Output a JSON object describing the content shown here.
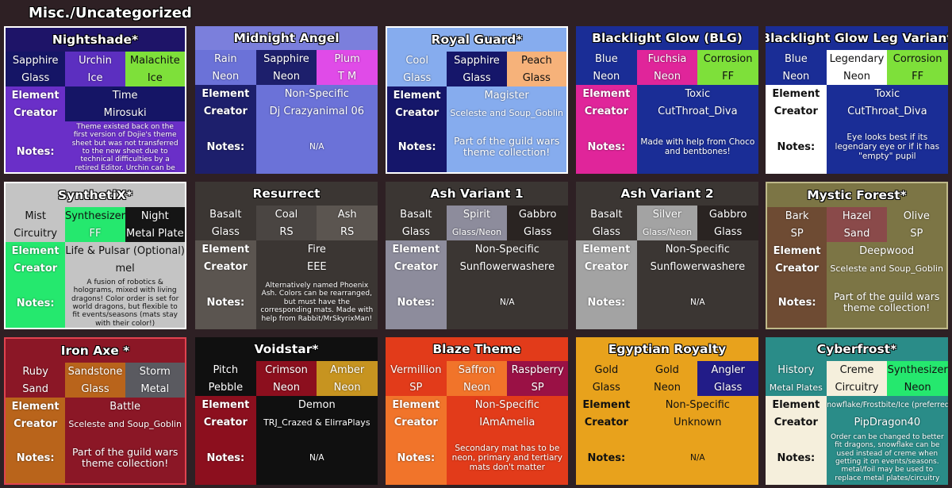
{
  "page_title": "Misc./Uncategorized",
  "labels": {
    "element": "Element",
    "creator": "Creator",
    "notes": "Notes:"
  },
  "themes": [
    {
      "name": "Nightshade*",
      "title_bg": "#1e1468",
      "border": "#ffffff",
      "row1": [
        {
          "t": "Sapphire",
          "bg": "#151566"
        },
        {
          "t": "Urchin",
          "bg": "#5c2fc0"
        },
        {
          "t": "Malachite",
          "bg": "#7ee03a",
          "dark": true
        }
      ],
      "row2": [
        {
          "t": "Glass",
          "bg": "#151566"
        },
        {
          "t": "Ice",
          "bg": "#5c2fc0"
        },
        {
          "t": "Ice",
          "bg": "#7ee03a",
          "dark": true
        }
      ],
      "label_bg": "#6a2fc8",
      "value_bg": "#151566",
      "element": "Time",
      "creator": "Mirosuki",
      "notes": "Theme existed back on the first version of Dojie's theme sheet but was not transferred to the new sheet due to technical difficulties by a retired Editor. Urchin can be replaced by midnight.",
      "notes_bg": "#6a2fc8",
      "notes_size": "s"
    },
    {
      "name": "Midnight Angel",
      "title_bg": "#7b7fdc",
      "row1": [
        {
          "t": "Rain",
          "bg": "#6b72d8"
        },
        {
          "t": "Sapphire",
          "bg": "#1d1f6c"
        },
        {
          "t": "Plum",
          "bg": "#e04be8"
        }
      ],
      "row2": [
        {
          "t": "Neon",
          "bg": "#6b72d8"
        },
        {
          "t": "Neon",
          "bg": "#1d1f6c"
        },
        {
          "t": "T M",
          "bg": "#e04be8"
        }
      ],
      "label_bg": "#1d1f6c",
      "value_bg": "#6b72d8",
      "element": "Non-Specific",
      "creator": "Dj Crazyanimal 06",
      "notes": "N/A",
      "notes_bg": "#6b72d8",
      "notes_size": "m"
    },
    {
      "name": "Royal Guard*",
      "title_bg": "#86acee",
      "border": "#ffffff",
      "row1": [
        {
          "t": "Cool",
          "bg": "#86acee"
        },
        {
          "t": "Sapphire",
          "bg": "#15166a"
        },
        {
          "t": "Peach",
          "bg": "#f6b27a",
          "dark": true
        }
      ],
      "row2": [
        {
          "t": "Glass",
          "bg": "#86acee"
        },
        {
          "t": "Glass",
          "bg": "#15166a"
        },
        {
          "t": "Glass",
          "bg": "#f6b27a",
          "dark": true
        }
      ],
      "label_bg": "#15166a",
      "value_bg": "#86acee",
      "element": "Magister",
      "creator": "Sceleste and Soup_Goblin",
      "notes": "Part of the guild wars theme collection!",
      "notes_bg": "#86acee",
      "notes_size": "l"
    },
    {
      "name": "Blacklight Glow (BLG)",
      "title_bg": "#1a2d96",
      "row1": [
        {
          "t": "Blue",
          "bg": "#1a2d96"
        },
        {
          "t": "Fuchsia",
          "bg": "#e0259a"
        },
        {
          "t": "Corrosion",
          "bg": "#7ee03a",
          "dark": true
        }
      ],
      "row2": [
        {
          "t": "Neon",
          "bg": "#1a2d96"
        },
        {
          "t": "Neon",
          "bg": "#e0259a"
        },
        {
          "t": "FF",
          "bg": "#7ee03a",
          "dark": true
        }
      ],
      "label_bg": "#e0259a",
      "value_bg": "#1a2d96",
      "element": "Toxic",
      "creator": "CutThroat_Diva",
      "notes": "Made with help from Choco and bentbones!",
      "notes_bg": "#1a2d96",
      "notes_size": "m"
    },
    {
      "name": "Blacklight Glow Leg Variant",
      "title_bg": "#1a2d96",
      "row1": [
        {
          "t": "Blue",
          "bg": "#1a2d96"
        },
        {
          "t": "Legendary",
          "bg": "#ffffff",
          "dark": true
        },
        {
          "t": "Corrosion",
          "bg": "#7ee03a",
          "dark": true
        }
      ],
      "row2": [
        {
          "t": "Neon",
          "bg": "#1a2d96"
        },
        {
          "t": "Neon",
          "bg": "#ffffff",
          "dark": true
        },
        {
          "t": "FF",
          "bg": "#7ee03a",
          "dark": true
        }
      ],
      "label_bg": "#ffffff",
      "label_dark": true,
      "value_bg": "#1a2d96",
      "element": "Toxic",
      "creator": "CutThroat_Diva",
      "notes": "Eye looks best if its legendary eye or if it has \"empty\" pupil",
      "notes_bg": "#1a2d96",
      "notes_size": "m"
    },
    {
      "name": "SynthetiX*",
      "title_bg": "#c4c4c4",
      "border": "#ffffff",
      "row1": [
        {
          "t": "Mist",
          "bg": "#c4c4c4",
          "dark": true
        },
        {
          "t": "Synthesizer",
          "bg": "#25e86e",
          "dark": true
        },
        {
          "t": "Night",
          "bg": "#151515"
        }
      ],
      "row2": [
        {
          "t": "Circuitry",
          "bg": "#c4c4c4",
          "dark": true
        },
        {
          "t": "FF",
          "bg": "#25e86e"
        },
        {
          "t": "Metal Plate",
          "bg": "#151515"
        }
      ],
      "label_bg": "#25e86e",
      "value_bg": "#c4c4c4",
      "value_dark": true,
      "element": "Life & Pulsar (Optional)",
      "creator": "mel",
      "notes": "A fusion of robotics & holograms, mixed with living dragons! Color order is set for world dragons, but flexible to fit events/seasons (mats stay with their color!)",
      "notes_bg": "#c4c4c4",
      "notes_dark": true,
      "notes_size": "s"
    },
    {
      "name": "Resurrect",
      "title_bg": "#3b3633",
      "row1": [
        {
          "t": "Basalt",
          "bg": "#3b3633"
        },
        {
          "t": "Coal",
          "bg": "#4a4542"
        },
        {
          "t": "Ash",
          "bg": "#5b5550"
        }
      ],
      "row2": [
        {
          "t": "Glass",
          "bg": "#3b3633"
        },
        {
          "t": "RS",
          "bg": "#4a4542"
        },
        {
          "t": "RS",
          "bg": "#5b5550"
        }
      ],
      "label_bg": "#5b5550",
      "value_bg": "#3b3633",
      "element": "Fire",
      "creator": "EEE",
      "notes": "Alternatively named Phoenix Ash. Colors can be rearranged, but must have the corresponding mats. Made with help from Rabbit/MrSkyrixMan!",
      "notes_bg": "#3b3633",
      "notes_size": "s"
    },
    {
      "name": "Ash Variant 1",
      "title_bg": "#3b3633",
      "row1": [
        {
          "t": "Basalt",
          "bg": "#3b3633"
        },
        {
          "t": "Spirit",
          "bg": "#8d8c9c"
        },
        {
          "t": "Gabbro",
          "bg": "#2a2422"
        }
      ],
      "row2": [
        {
          "t": "Glass",
          "bg": "#3b3633"
        },
        {
          "t": "Glass/Neon",
          "bg": "#8d8c9c",
          "sm": true
        },
        {
          "t": "Glass",
          "bg": "#2a2422"
        }
      ],
      "label_bg": "#8d8c9c",
      "value_bg": "#3b3633",
      "element": "Non-Specific",
      "creator": "Sunflowerwashere",
      "notes": "N/A",
      "notes_bg": "#3b3633",
      "notes_size": "m"
    },
    {
      "name": "Ash Variant 2",
      "title_bg": "#3b3633",
      "row1": [
        {
          "t": "Basalt",
          "bg": "#3b3633"
        },
        {
          "t": "Silver",
          "bg": "#a3a3a3"
        },
        {
          "t": "Gabbro",
          "bg": "#2a2422"
        }
      ],
      "row2": [
        {
          "t": "Glass",
          "bg": "#3b3633"
        },
        {
          "t": "Glass/Neon",
          "bg": "#a3a3a3",
          "sm": true
        },
        {
          "t": "Glass",
          "bg": "#2a2422"
        }
      ],
      "label_bg": "#a3a3a3",
      "value_bg": "#3b3633",
      "element": "Non-Specific",
      "creator": "Sunflowerwashere",
      "notes": "N/A",
      "notes_bg": "#3b3633",
      "notes_size": "m"
    },
    {
      "name": "Mystic Forest*",
      "title_bg": "#7c7545",
      "border": "#bfb98a",
      "row1": [
        {
          "t": "Bark",
          "bg": "#6e4b33"
        },
        {
          "t": "Hazel",
          "bg": "#8a4a4a"
        },
        {
          "t": "Olive",
          "bg": "#7c7545"
        }
      ],
      "row2": [
        {
          "t": "SP",
          "bg": "#6e4b33"
        },
        {
          "t": "Sand",
          "bg": "#8a4a4a"
        },
        {
          "t": "SP",
          "bg": "#7c7545"
        }
      ],
      "label_bg": "#6e4b33",
      "value_bg": "#7c7545",
      "element": "Deepwood",
      "creator": "Sceleste and Soup_Goblin",
      "notes": "Part of the guild wars theme collection!",
      "notes_bg": "#7c7545",
      "notes_size": "l"
    },
    {
      "name": "Iron Axe *",
      "title_bg": "#8b1726",
      "border": "#e0434f",
      "row1": [
        {
          "t": "Ruby",
          "bg": "#8b1726"
        },
        {
          "t": "Sandstone",
          "bg": "#b9641b"
        },
        {
          "t": "Storm",
          "bg": "#5a5a60"
        }
      ],
      "row2": [
        {
          "t": "Sand",
          "bg": "#8b1726"
        },
        {
          "t": "Glass",
          "bg": "#b9641b"
        },
        {
          "t": "Metal",
          "bg": "#5a5a60"
        }
      ],
      "label_bg": "#b9641b",
      "value_bg": "#8b1726",
      "element": "Battle",
      "creator": "Sceleste and Soup_Goblin",
      "notes": "Part of the guild wars theme collection!",
      "notes_bg": "#8b1726",
      "notes_size": "l"
    },
    {
      "name": "Voidstar*",
      "title_bg": "#101010",
      "row1": [
        {
          "t": "Pitch",
          "bg": "#101010"
        },
        {
          "t": "Crimson",
          "bg": "#8c0f1e"
        },
        {
          "t": "Amber",
          "bg": "#c79420"
        }
      ],
      "row2": [
        {
          "t": "Pebble",
          "bg": "#101010"
        },
        {
          "t": "Neon",
          "bg": "#8c0f1e"
        },
        {
          "t": "Neon",
          "bg": "#c79420"
        }
      ],
      "label_bg": "#8c0f1e",
      "value_bg": "#101010",
      "element": "Demon",
      "creator": "TRJ_Crazed & ElirraPlays",
      "notes": "N/A",
      "notes_bg": "#101010",
      "notes_size": "m"
    },
    {
      "name": "Blaze Theme",
      "title_bg": "#e23b1a",
      "row1": [
        {
          "t": "Vermillion",
          "bg": "#e23b1a"
        },
        {
          "t": "Saffron",
          "bg": "#f1742a"
        },
        {
          "t": "Raspberry",
          "bg": "#9a1145"
        }
      ],
      "row2": [
        {
          "t": "SP",
          "bg": "#e23b1a"
        },
        {
          "t": "Neon",
          "bg": "#f1742a"
        },
        {
          "t": "SP",
          "bg": "#9a1145"
        }
      ],
      "label_bg": "#f1742a",
      "value_bg": "#e23b1a",
      "element": "Non-Specific",
      "creator": "IAmAmelia",
      "notes": "Secondary mat has to be neon, primary and tertiary mats don't matter",
      "notes_bg": "#e23b1a",
      "notes_size": "m"
    },
    {
      "name": "Egyptian Royalty",
      "title_bg": "#e8a21c",
      "row1": [
        {
          "t": "Gold",
          "bg": "#e8a21c",
          "dark": true
        },
        {
          "t": "Gold",
          "bg": "#e8a21c",
          "dark": true
        },
        {
          "t": "Angler",
          "bg": "#221c88"
        }
      ],
      "row2": [
        {
          "t": "Glass",
          "bg": "#e8a21c",
          "dark": true
        },
        {
          "t": "Neon",
          "bg": "#e8a21c",
          "dark": true
        },
        {
          "t": "Glass",
          "bg": "#221c88"
        }
      ],
      "label_bg": "#e8a21c",
      "label_dark": true,
      "value_bg": "#e8a21c",
      "value_dark": true,
      "element": "Non-Specific",
      "creator": "Unknown",
      "notes": "N/A",
      "notes_bg": "#e8a21c",
      "notes_dark": true,
      "notes_size": "m"
    },
    {
      "name": "Cyberfrost*",
      "title_bg": "#2a8c88",
      "row1": [
        {
          "t": "History",
          "bg": "#2a8c88"
        },
        {
          "t": "Creme",
          "bg": "#f5efdc",
          "dark": true
        },
        {
          "t": "Synthesizer",
          "bg": "#25e86e",
          "dark": true
        }
      ],
      "row2": [
        {
          "t": "Metal Plates",
          "bg": "#2a8c88",
          "sm": true
        },
        {
          "t": "Circuitry",
          "bg": "#f5efdc",
          "dark": true
        },
        {
          "t": "Neon",
          "bg": "#25e86e",
          "dark": true
        }
      ],
      "label_bg": "#f5efdc",
      "label_dark": true,
      "value_bg": "#2a8c88",
      "element": "Snowflake/Frostbite/Ice (preferred)",
      "element_small": true,
      "creator": "PipDragon40",
      "notes": "Order can be changed to better fit dragons, snowflake can be used instead of creme when getting it on events/seasons. metal/foil may be used to replace metal plates/circuitry",
      "notes_bg": "#2a8c88",
      "notes_size": "s"
    }
  ]
}
